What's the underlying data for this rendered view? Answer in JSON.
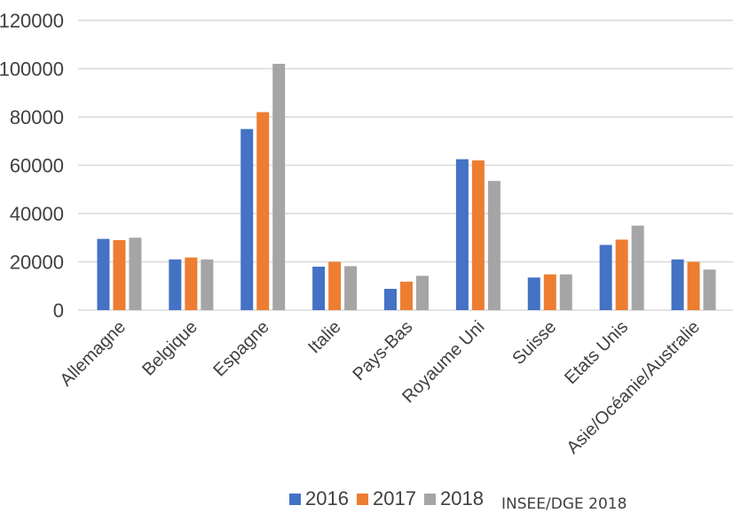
{
  "chart_data": {
    "type": "bar",
    "categories": [
      "Allemagne",
      "Belgique",
      "Espagne",
      "Italie",
      "Pays-Bas",
      "Royaume Uni",
      "Suisse",
      "Etats Unis",
      "Asie/Océanie/Australie"
    ],
    "series": [
      {
        "name": "2016",
        "color": "#4472c4",
        "values": [
          29500,
          21000,
          75000,
          18000,
          8800,
          62500,
          13500,
          27000,
          21000
        ]
      },
      {
        "name": "2017",
        "color": "#ed7d31",
        "values": [
          29000,
          21800,
          82000,
          20000,
          11800,
          62000,
          14800,
          29200,
          20000
        ]
      },
      {
        "name": "2018",
        "color": "#a5a5a5",
        "values": [
          30000,
          21000,
          102000,
          18200,
          14200,
          53500,
          14800,
          35000,
          16800
        ]
      }
    ],
    "ylim": [
      0,
      120000
    ],
    "yticks": [
      "0",
      "20000",
      "40000",
      "60000",
      "80000",
      "100000",
      "120000"
    ],
    "grid": true,
    "legend_position": "bottom",
    "source": "INSEE/DGE 2018"
  }
}
